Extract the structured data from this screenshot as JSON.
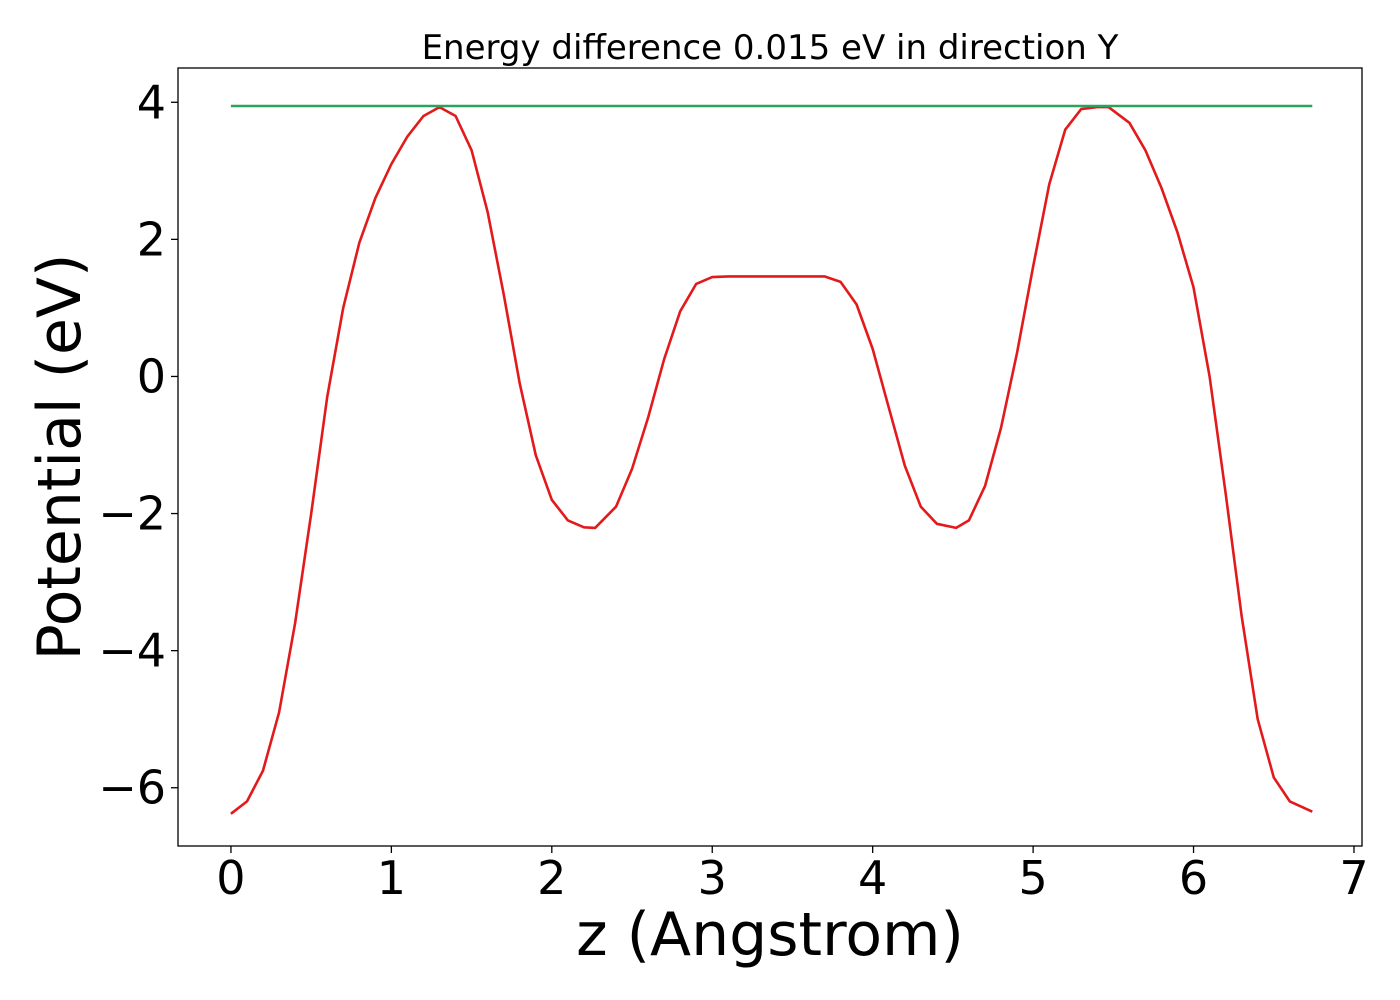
{
  "chart_data": {
    "type": "line",
    "title": "Energy difference 0.015 eV in direction Y",
    "xlabel": "z (Angstrom)",
    "ylabel": "Potential (eV)",
    "xlim": [
      -0.33,
      7.05
    ],
    "ylim": [
      -6.85,
      4.5
    ],
    "xticks": [
      0,
      1,
      2,
      3,
      4,
      5,
      6,
      7
    ],
    "xtick_labels": [
      "0",
      "1",
      "2",
      "3",
      "4",
      "5",
      "6",
      "7"
    ],
    "yticks": [
      -6,
      -4,
      -2,
      0,
      2,
      4
    ],
    "ytick_labels": [
      "−6",
      "−4",
      "−2",
      "0",
      "2",
      "4"
    ],
    "grid": false,
    "series": [
      {
        "color": "#e31a1c",
        "x": [
          0,
          0.1,
          0.2,
          0.3,
          0.4,
          0.5,
          0.6,
          0.7,
          0.8,
          0.9,
          1.0,
          1.1,
          1.2,
          1.3,
          1.4,
          1.5,
          1.6,
          1.7,
          1.8,
          1.9,
          2.0,
          2.1,
          2.2,
          2.27,
          2.4,
          2.5,
          2.6,
          2.7,
          2.8,
          2.9,
          3.0,
          3.1,
          3.2,
          3.3,
          3.4,
          3.5,
          3.6,
          3.7,
          3.8,
          3.9,
          4.0,
          4.1,
          4.2,
          4.3,
          4.4,
          4.52,
          4.6,
          4.7,
          4.8,
          4.9,
          5.0,
          5.1,
          5.2,
          5.3,
          5.4,
          5.47,
          5.6,
          5.7,
          5.8,
          5.9,
          6.0,
          6.1,
          6.2,
          6.3,
          6.4,
          6.5,
          6.6,
          6.74
        ],
        "y": [
          -6.38,
          -6.2,
          -5.75,
          -4.9,
          -3.6,
          -2.0,
          -0.3,
          1.0,
          1.95,
          2.6,
          3.1,
          3.5,
          3.8,
          3.93,
          3.8,
          3.3,
          2.4,
          1.2,
          -0.1,
          -1.15,
          -1.8,
          -2.1,
          -2.2,
          -2.21,
          -1.9,
          -1.35,
          -0.6,
          0.25,
          0.95,
          1.35,
          1.45,
          1.46,
          1.46,
          1.46,
          1.46,
          1.46,
          1.46,
          1.46,
          1.38,
          1.05,
          0.4,
          -0.45,
          -1.3,
          -1.9,
          -2.15,
          -2.21,
          -2.1,
          -1.6,
          -0.75,
          0.35,
          1.6,
          2.8,
          3.6,
          3.9,
          3.93,
          3.93,
          3.7,
          3.3,
          2.75,
          2.1,
          1.3,
          0.0,
          -1.7,
          -3.5,
          -5.0,
          -5.85,
          -6.2,
          -6.35
        ]
      },
      {
        "color": "#2ca25f",
        "x": [
          0,
          6.74
        ],
        "y": [
          3.945,
          3.945
        ]
      }
    ]
  }
}
